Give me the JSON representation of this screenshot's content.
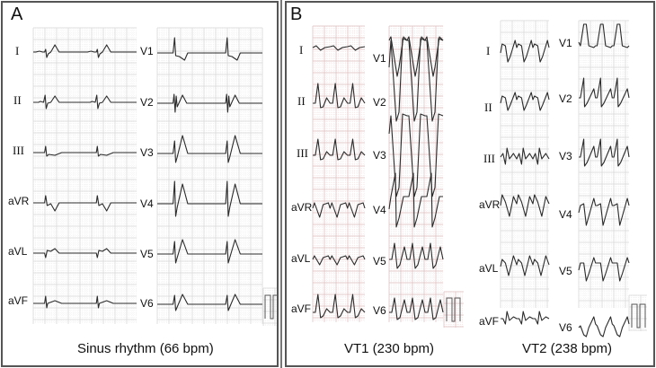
{
  "figure": {
    "panels": [
      {
        "id": "A",
        "label": "A",
        "caption": "Sinus rhythm (66 bpm)",
        "rhythm": "Sinus rhythm",
        "rate_bpm": 66,
        "grid_color": "#d8d8d8",
        "limb_leads": [
          "I",
          "II",
          "III",
          "aVR",
          "aVL",
          "aVF"
        ],
        "precordial_leads": [
          "V1",
          "V2",
          "V3",
          "V4",
          "V5",
          "V6"
        ]
      },
      {
        "id": "B",
        "label": "B",
        "sub_panels": [
          {
            "id": "VT1",
            "caption": "VT1 (230 bpm)",
            "rhythm": "VT1",
            "rate_bpm": 230,
            "grid_color": "#e6c9c9",
            "limb_leads": [
              "I",
              "II",
              "III",
              "aVR",
              "aVL",
              "aVF"
            ],
            "precordial_leads": [
              "V1",
              "V2",
              "V3",
              "V4",
              "V5",
              "V6"
            ]
          },
          {
            "id": "VT2",
            "caption": "VT2 (238 bpm)",
            "rhythm": "VT2",
            "rate_bpm": 238,
            "grid_color": "#d8d8d8",
            "limb_leads": [
              "I",
              "II",
              "III",
              "aVR",
              "aVL",
              "aVF"
            ],
            "precordial_leads": [
              "V1",
              "V2",
              "V3",
              "V4",
              "V5",
              "V6"
            ]
          }
        ]
      }
    ]
  },
  "labels": {
    "a": {
      "letter": "A",
      "caption": "Sinus rhythm (66 bpm)",
      "limb": [
        "I",
        "II",
        "III",
        "aVR",
        "aVL",
        "aVF"
      ],
      "prec": [
        "V1",
        "V2",
        "V3",
        "V4",
        "V5",
        "V6"
      ]
    },
    "vt1": {
      "letter": "B",
      "caption": "VT1 (230 bpm)",
      "limb": [
        "I",
        "II",
        "III",
        "aVR",
        "aVL",
        "aVF"
      ],
      "prec": [
        "V1",
        "V2",
        "V3",
        "V4",
        "V5",
        "V6"
      ]
    },
    "vt2": {
      "caption": "VT2 (238 bpm)",
      "limb": [
        "I",
        "II",
        "III",
        "aVR",
        "aVL",
        "aVF"
      ],
      "prec": [
        "V1",
        "V2",
        "V3",
        "V4",
        "V5",
        "V6"
      ]
    }
  },
  "colors": {
    "trace": "#2b2b2b",
    "grid_gray": "#d6d6d6",
    "grid_gray_minor": "#ececec",
    "grid_pink": "#dcbcbc",
    "grid_pink_minor": "#f0e2e2",
    "border": "#555555"
  }
}
